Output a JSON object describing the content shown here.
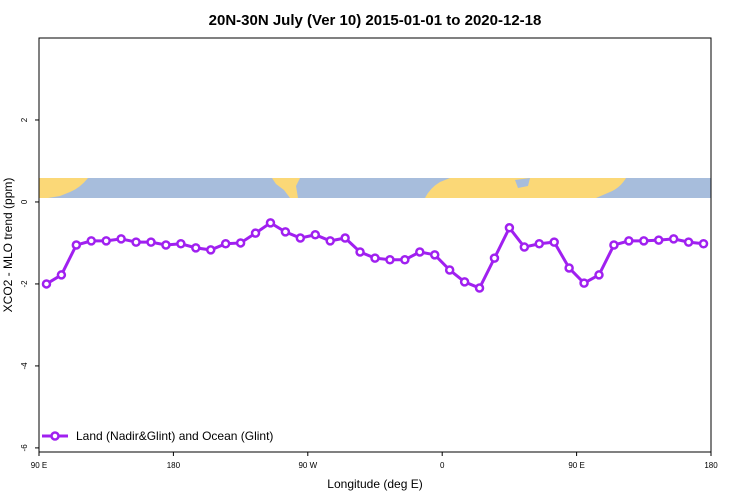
{
  "chart_data": {
    "type": "line",
    "title": "20N-30N July (Ver 10)   2015-01-01 to 2020-12-18",
    "x_label": "Longitude (deg E)",
    "y_label": "XCO2 - MLO trend (ppm)",
    "x": [
      95,
      105,
      115,
      125,
      135,
      145,
      155,
      165,
      175,
      185,
      195,
      205,
      215,
      225,
      235,
      245,
      255,
      265,
      275,
      285,
      295,
      305,
      315,
      325,
      335,
      345,
      355,
      365,
      375,
      385,
      395,
      405,
      415,
      425,
      435,
      445,
      455,
      465,
      475,
      485,
      495,
      505,
      515,
      525,
      535
    ],
    "series": [
      {
        "name": "Land (Nadir&Glint) and Ocean (Glint)",
        "color": "#a020f0",
        "values": [
          -2.0,
          -1.78,
          -1.05,
          -0.95,
          -0.95,
          -0.9,
          -0.98,
          -0.98,
          -1.05,
          -1.02,
          -1.12,
          -1.17,
          -1.02,
          -1.0,
          -0.76,
          -0.51,
          -0.73,
          -0.88,
          -0.8,
          -0.95,
          -0.88,
          -1.22,
          -1.37,
          -1.41,
          -1.41,
          -1.22,
          -1.29,
          -1.66,
          -1.95,
          -2.1,
          -1.37,
          -0.63,
          -1.1,
          -1.02,
          -0.98,
          -1.61,
          -1.98,
          -1.78,
          -1.05,
          -0.95,
          -0.95,
          -0.93,
          -0.9,
          -0.98,
          -1.02
        ]
      }
    ],
    "xlim": [
      90,
      540
    ],
    "xticks": [
      {
        "value": 90,
        "label": "90 E"
      },
      {
        "value": 180,
        "label": "180"
      },
      {
        "value": 270,
        "label": "90 W"
      },
      {
        "value": 360,
        "label": "0"
      },
      {
        "value": 450,
        "label": "90 E"
      },
      {
        "value": 540,
        "label": "180"
      }
    ],
    "ylim": [
      -6.1,
      4
    ],
    "yticks": [
      -6,
      -4,
      -2,
      0,
      2
    ],
    "legend": "bottom-left"
  }
}
